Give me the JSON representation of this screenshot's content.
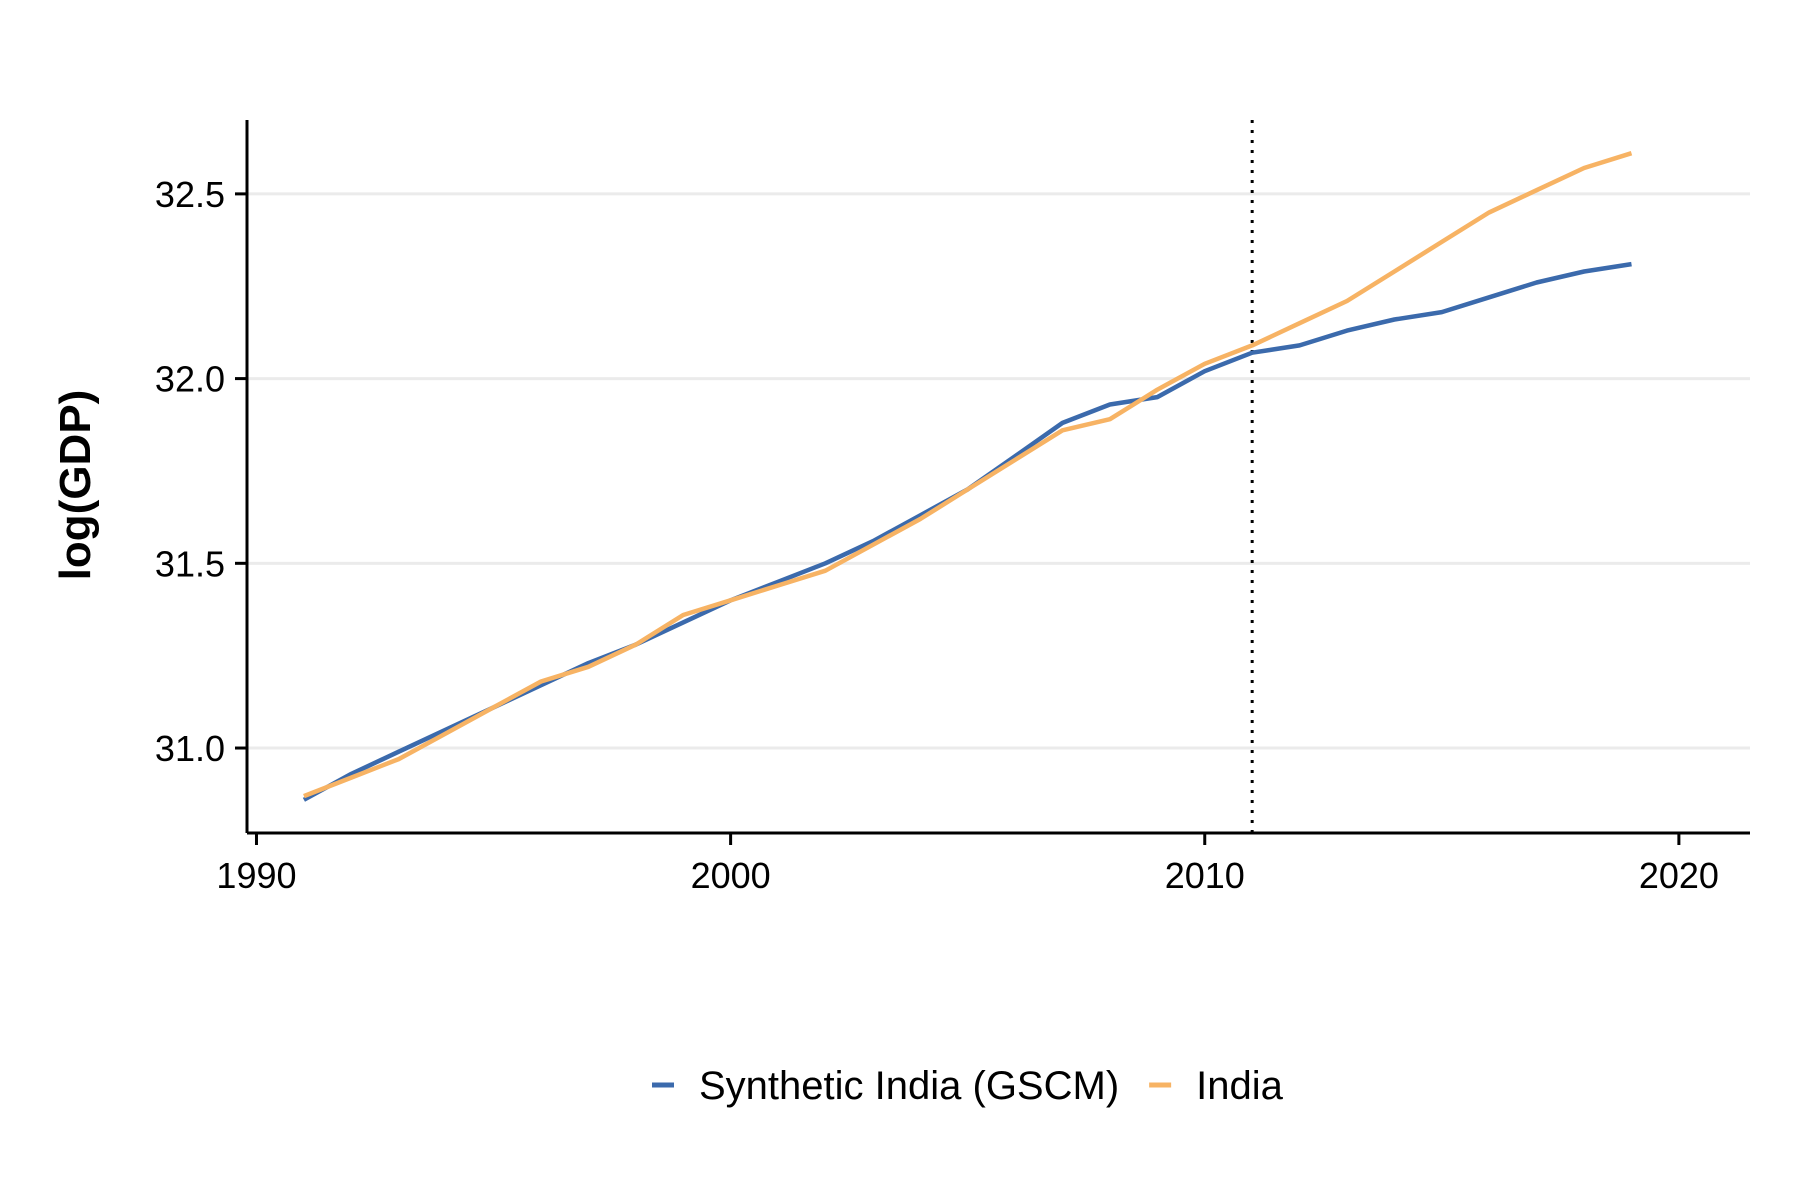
{
  "chart_data": {
    "type": "line",
    "title": "",
    "xlabel": "",
    "ylabel": "log(GDP)",
    "xlim": [
      1989.8,
      2021.5
    ],
    "ylim": [
      30.77,
      32.7
    ],
    "x_ticks": [
      1990,
      2000,
      2010,
      2020
    ],
    "x_tick_labels": [
      "1990",
      "2000",
      "2010",
      "2020"
    ],
    "y_ticks": [
      31.0,
      31.5,
      32.0,
      32.5
    ],
    "y_tick_labels": [
      "31.0",
      "31.5",
      "32.0",
      "32.5"
    ],
    "grid": "horizontal major",
    "legend_position": "bottom",
    "treatment_line": {
      "x": 2011,
      "style": "dotted"
    },
    "x": [
      1991,
      1992,
      1993,
      1994,
      1995,
      1996,
      1997,
      1998,
      1999,
      2000,
      2001,
      2002,
      2003,
      2004,
      2005,
      2006,
      2007,
      2008,
      2009,
      2010,
      2011,
      2012,
      2013,
      2014,
      2015,
      2016,
      2017,
      2018,
      2019
    ],
    "series": [
      {
        "name": "Synthetic India (GSCM)",
        "color": "#3B6AAC",
        "values": [
          30.86,
          30.93,
          30.99,
          31.05,
          31.11,
          31.17,
          31.23,
          31.28,
          31.34,
          31.4,
          31.45,
          31.5,
          31.56,
          31.63,
          31.7,
          31.79,
          31.88,
          31.93,
          31.95,
          32.02,
          32.07,
          32.09,
          32.13,
          32.16,
          32.18,
          32.22,
          32.26,
          32.29,
          32.31
        ]
      },
      {
        "name": "India",
        "color": "#F7B364",
        "values": [
          30.87,
          30.92,
          30.97,
          31.04,
          31.11,
          31.18,
          31.22,
          31.28,
          31.36,
          31.4,
          31.44,
          31.48,
          31.55,
          31.62,
          31.7,
          31.78,
          31.86,
          31.89,
          31.97,
          32.04,
          32.09,
          32.15,
          32.21,
          32.29,
          32.37,
          32.45,
          32.51,
          32.57,
          32.61
        ]
      }
    ]
  }
}
